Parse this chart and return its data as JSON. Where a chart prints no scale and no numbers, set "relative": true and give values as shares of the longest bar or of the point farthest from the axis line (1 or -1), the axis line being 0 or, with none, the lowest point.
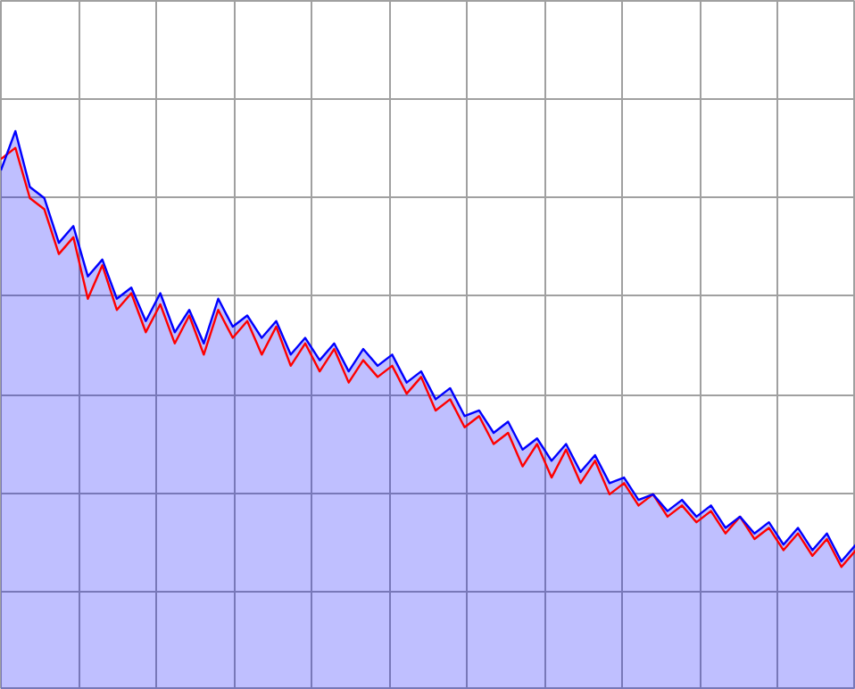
{
  "chart_data": {
    "type": "line",
    "relative": true,
    "grid": true,
    "categories": [
      null,
      null,
      null,
      null,
      null,
      null,
      null,
      null,
      null,
      null,
      null,
      null,
      null,
      null,
      null,
      null,
      null,
      null,
      null,
      null,
      null,
      null,
      null,
      null,
      null,
      null,
      null,
      null,
      null,
      null,
      null,
      null,
      null,
      null,
      null,
      null,
      null,
      null,
      null,
      null,
      null,
      null,
      null,
      null,
      null,
      null,
      null,
      null,
      null,
      null,
      null,
      null,
      null,
      null,
      null,
      null,
      null,
      null,
      null,
      null
    ],
    "series": [
      {
        "color": "#ff0000",
        "values": [
          0.95,
          0.97,
          0.88,
          0.86,
          0.78,
          0.81,
          0.7,
          0.76,
          0.68,
          0.71,
          0.64,
          0.69,
          0.62,
          0.67,
          0.6,
          0.68,
          0.63,
          0.66,
          0.6,
          0.65,
          0.58,
          0.62,
          0.57,
          0.61,
          0.55,
          0.59,
          0.56,
          0.58,
          0.53,
          0.56,
          0.5,
          0.52,
          0.47,
          0.49,
          0.44,
          0.46,
          0.4,
          0.44,
          0.38,
          0.43,
          0.37,
          0.41,
          0.35,
          0.37,
          0.33,
          0.35,
          0.31,
          0.33,
          0.3,
          0.32,
          0.28,
          0.31,
          0.27,
          0.29,
          0.25,
          0.28,
          0.24,
          0.27,
          0.22,
          0.25
        ]
      },
      {
        "type": "area",
        "color": "#0000ff",
        "values": [
          0.93,
          1.0,
          0.9,
          0.88,
          0.8,
          0.83,
          0.74,
          0.77,
          0.7,
          0.72,
          0.66,
          0.71,
          0.64,
          0.68,
          0.62,
          0.7,
          0.65,
          0.67,
          0.63,
          0.66,
          0.6,
          0.63,
          0.59,
          0.62,
          0.57,
          0.61,
          0.58,
          0.6,
          0.55,
          0.57,
          0.52,
          0.54,
          0.49,
          0.5,
          0.46,
          0.48,
          0.43,
          0.45,
          0.41,
          0.44,
          0.39,
          0.42,
          0.37,
          0.38,
          0.34,
          0.35,
          0.32,
          0.34,
          0.31,
          0.33,
          0.29,
          0.31,
          0.28,
          0.3,
          0.26,
          0.29,
          0.25,
          0.28,
          0.23,
          0.26
        ]
      }
    ]
  }
}
